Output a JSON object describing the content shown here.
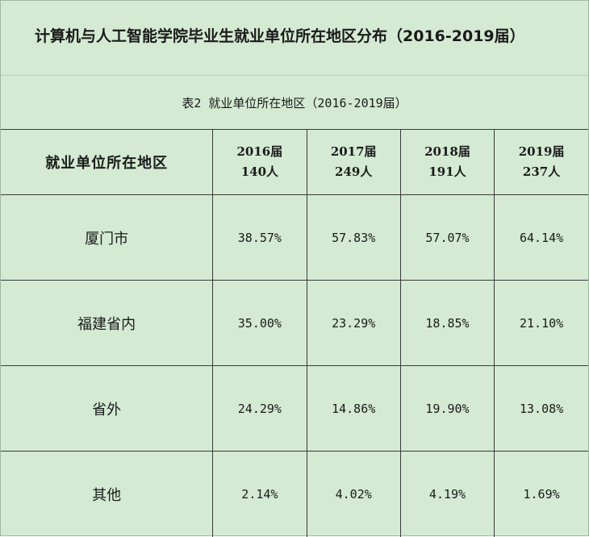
{
  "title": "计算机与人工智能学院毕业生就业单位所在地区分布（2016-2019届）",
  "caption": "表2 就业单位所在地区（2016-2019届）",
  "table": {
    "region_header": "就业单位所在地区",
    "years": [
      {
        "year": "2016届",
        "count": "140人"
      },
      {
        "year": "2017届",
        "count": "249人"
      },
      {
        "year": "2018届",
        "count": "191人"
      },
      {
        "year": "2019届",
        "count": "237人"
      }
    ],
    "rows": [
      {
        "region": "厦门市",
        "values": [
          "38.57%",
          "57.83%",
          "57.07%",
          "64.14%"
        ]
      },
      {
        "region": "福建省内",
        "values": [
          "35.00%",
          "23.29%",
          "18.85%",
          "21.10%"
        ]
      },
      {
        "region": "省外",
        "values": [
          "24.29%",
          "14.86%",
          "19.90%",
          "13.08%"
        ]
      },
      {
        "region": "其他",
        "values": [
          "2.14%",
          "4.02%",
          "4.19%",
          "1.69%"
        ]
      }
    ]
  },
  "colors": {
    "background": "#d4ead3",
    "grid": "#3a3a3a"
  }
}
